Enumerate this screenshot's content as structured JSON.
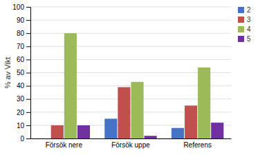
{
  "chart_data": {
    "type": "bar",
    "categories": [
      "Försök nere",
      "Försök uppe",
      "Referens"
    ],
    "series": [
      {
        "name": "2",
        "color": "#4472C4",
        "values": [
          0,
          15,
          8
        ]
      },
      {
        "name": "3",
        "color": "#C0504D",
        "values": [
          10,
          39,
          25
        ]
      },
      {
        "name": "4",
        "color": "#9BBB59",
        "values": [
          80,
          43,
          54
        ]
      },
      {
        "name": "5",
        "color": "#7030A0",
        "values": [
          10,
          2,
          12
        ]
      }
    ],
    "ylabel": "% av Vikt",
    "ylim": [
      0,
      100
    ],
    "yticks": [
      0,
      10,
      20,
      30,
      40,
      50,
      60,
      70,
      80,
      90,
      100
    ],
    "grid": true,
    "legend": "upper right"
  }
}
